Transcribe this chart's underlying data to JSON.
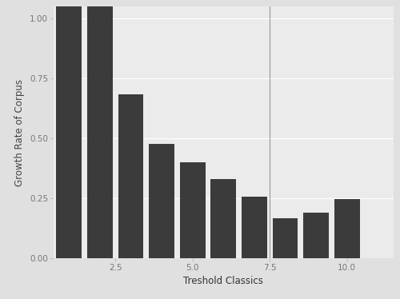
{
  "categories": [
    1,
    2,
    3,
    4,
    5,
    6,
    7,
    8,
    9,
    10,
    11
  ],
  "values": [
    1.05,
    1.05,
    0.685,
    0.475,
    0.4,
    0.33,
    0.255,
    0.165,
    0.19,
    0.245,
    0.0
  ],
  "bar_color": "#3b3b3b",
  "outer_bg": "#e0e0e0",
  "panel_bg": "#ebebeb",
  "grid_color": "#ffffff",
  "xlabel": "Treshold Classics",
  "ylabel": "Growth Rate of Corpus",
  "xlim": [
    0.5,
    11.5
  ],
  "ylim": [
    0.0,
    1.05
  ],
  "xticks": [
    2.5,
    5.0,
    7.5,
    10.0
  ],
  "yticks": [
    0.0,
    0.25,
    0.5,
    0.75,
    1.0
  ],
  "ytick_labels": [
    "0.00",
    "0.25",
    "0.50",
    "0.75",
    "1.00"
  ],
  "vline_x": 7.5,
  "vline_color": "#999999",
  "axis_label_fontsize": 8.5,
  "tick_fontsize": 7.5
}
